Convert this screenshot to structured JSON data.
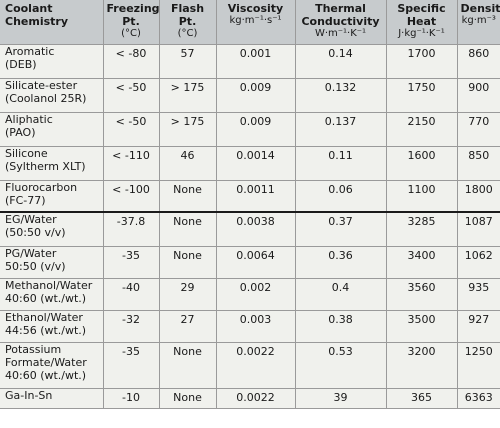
{
  "headers": [
    {
      "main": "Coolant Chemistry",
      "sub": ""
    },
    {
      "main": "Freezing Pt.",
      "sub": "(°C)"
    },
    {
      "main": "Flash Pt.",
      "sub": "(°C)"
    },
    {
      "main": "Viscosity",
      "sub": "kg·m⁻¹·s⁻¹"
    },
    {
      "main": "Thermal Conductivity",
      "sub": "W·m⁻¹·K⁻¹"
    },
    {
      "main": "Specific Heat",
      "sub": "J·kg⁻¹·K⁻¹"
    },
    {
      "main": "Density",
      "sub": "kg·m⁻³"
    }
  ],
  "rows": [
    {
      "name": [
        "Aromatic",
        "(DEB)"
      ],
      "freezing": "< -80",
      "flash": "57",
      "viscosity": "0.001",
      "conductivity": "0.14",
      "specific_heat": "1700",
      "density": "860"
    },
    {
      "name": [
        "Silicate-ester",
        "(Coolanol 25R)"
      ],
      "freezing": "< -50",
      "flash": "> 175",
      "viscosity": "0.009",
      "conductivity": "0.132",
      "specific_heat": "1750",
      "density": "900"
    },
    {
      "name": [
        "Aliphatic",
        "(PAO)"
      ],
      "freezing": "< -50",
      "flash": "> 175",
      "viscosity": "0.009",
      "conductivity": "0.137",
      "specific_heat": "2150",
      "density": "770"
    },
    {
      "name": [
        "Silicone",
        "(Syltherm XLT)"
      ],
      "freezing": "< -110",
      "flash": "46",
      "viscosity": "0.0014",
      "conductivity": "0.11",
      "specific_heat": "1600",
      "density": "850"
    },
    {
      "name": [
        "Fluorocarbon",
        "(FC-77)"
      ],
      "freezing": "< -100",
      "flash": "None",
      "viscosity": "0.0011",
      "conductivity": "0.06",
      "specific_heat": "1100",
      "density": "1800"
    },
    {
      "name": [
        "EG/Water",
        "(50:50 v/v)"
      ],
      "freezing": "-37.8",
      "flash": "None",
      "viscosity": "0.0038",
      "conductivity": "0.37",
      "specific_heat": "3285",
      "density": "1087"
    },
    {
      "name": [
        "PG/Water",
        "50:50 (v/v)"
      ],
      "freezing": "-35",
      "flash": "None",
      "viscosity": "0.0064",
      "conductivity": "0.36",
      "specific_heat": "3400",
      "density": "1062"
    },
    {
      "name": [
        "Methanol/Water",
        "40:60 (wt./wt.)"
      ],
      "freezing": "-40",
      "flash": "29",
      "viscosity": "0.002",
      "conductivity": "0.4",
      "specific_heat": "3560",
      "density": "935"
    },
    {
      "name": [
        "Ethanol/Water",
        "44:56 (wt./wt.)"
      ],
      "freezing": "-32",
      "flash": "27",
      "viscosity": "0.003",
      "conductivity": "0.38",
      "specific_heat": "3500",
      "density": "927"
    },
    {
      "name": [
        "Potassium",
        "Formate/Water",
        "40:60 (wt./wt.)"
      ],
      "freezing": "-35",
      "flash": "None",
      "viscosity": "0.0022",
      "conductivity": "0.53",
      "specific_heat": "3200",
      "density": "1250"
    },
    {
      "name": [
        "Ga-In-Sn"
      ],
      "freezing": "-10",
      "flash": "None",
      "viscosity": "0.0022",
      "conductivity": "39",
      "specific_heat": "365",
      "density": "6363"
    }
  ]
}
